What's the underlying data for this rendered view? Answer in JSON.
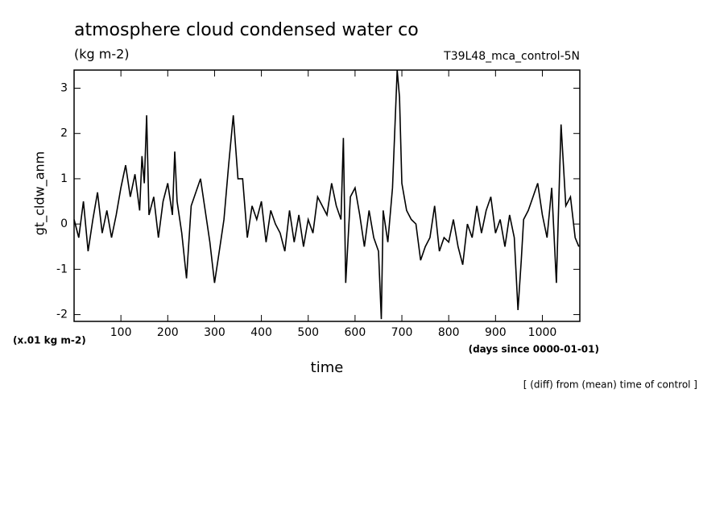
{
  "chart_data": {
    "type": "line",
    "title": "atmosphere cloud condensed water co",
    "subtitle": "(kg m-2)",
    "run_label": "T39L48_mca_control-5N",
    "y_label": "gt_cldw_anm",
    "x_label": "time",
    "y_unit_note": "(x.01 kg m-2)",
    "x_unit_note": "(days since 0000-01-01)",
    "footnote": "[ (diff) from (mean) time of control ]",
    "x": [
      0,
      10,
      20,
      30,
      40,
      50,
      60,
      70,
      80,
      90,
      100,
      110,
      120,
      130,
      140,
      145,
      150,
      155,
      160,
      170,
      180,
      190,
      200,
      210,
      215,
      220,
      230,
      240,
      250,
      260,
      270,
      280,
      290,
      300,
      310,
      320,
      330,
      340,
      350,
      360,
      370,
      380,
      390,
      400,
      410,
      420,
      430,
      440,
      450,
      460,
      470,
      480,
      490,
      500,
      510,
      520,
      530,
      540,
      550,
      560,
      570,
      575,
      580,
      590,
      600,
      610,
      620,
      630,
      640,
      650,
      656,
      660,
      670,
      680,
      690,
      695,
      700,
      710,
      720,
      730,
      740,
      750,
      760,
      770,
      780,
      790,
      800,
      810,
      820,
      830,
      840,
      850,
      860,
      870,
      880,
      890,
      900,
      910,
      920,
      930,
      940,
      948,
      955,
      960,
      970,
      980,
      990,
      1000,
      1010,
      1020,
      1030,
      1040,
      1050,
      1060,
      1070,
      1078
    ],
    "series": [
      {
        "name": "gt_cldw_anm",
        "color": "#000000",
        "values": [
          0.1,
          -0.3,
          0.5,
          -0.6,
          0.1,
          0.7,
          -0.2,
          0.3,
          -0.3,
          0.2,
          0.8,
          1.3,
          0.6,
          1.1,
          0.3,
          1.5,
          0.9,
          2.4,
          0.2,
          0.6,
          -0.3,
          0.5,
          0.9,
          0.2,
          1.6,
          0.5,
          -0.2,
          -1.2,
          0.4,
          0.7,
          1.0,
          0.3,
          -0.4,
          -1.3,
          -0.6,
          0.1,
          1.3,
          2.4,
          1.0,
          1.0,
          -0.3,
          0.4,
          0.1,
          0.5,
          -0.4,
          0.3,
          0.0,
          -0.2,
          -0.6,
          0.3,
          -0.4,
          0.2,
          -0.5,
          0.1,
          -0.2,
          0.6,
          0.4,
          0.2,
          0.9,
          0.4,
          0.1,
          1.9,
          -1.3,
          0.6,
          0.8,
          0.2,
          -0.5,
          0.3,
          -0.3,
          -0.6,
          -2.1,
          0.3,
          -0.4,
          0.8,
          3.4,
          2.8,
          0.9,
          0.3,
          0.1,
          0.0,
          -0.8,
          -0.5,
          -0.3,
          0.4,
          -0.6,
          -0.3,
          -0.4,
          0.1,
          -0.5,
          -0.9,
          0.0,
          -0.3,
          0.4,
          -0.2,
          0.3,
          0.6,
          -0.2,
          0.1,
          -0.5,
          0.2,
          -0.3,
          -1.9,
          -0.8,
          0.1,
          0.3,
          0.6,
          0.9,
          0.2,
          -0.3,
          0.8,
          -1.3,
          2.2,
          0.4,
          0.6,
          -0.3,
          -0.5
        ]
      }
    ],
    "xlim": [
      0,
      1080
    ],
    "ylim": [
      -2.15,
      3.4
    ],
    "xticks": [
      100,
      200,
      300,
      400,
      500,
      600,
      700,
      800,
      900,
      1000
    ],
    "yticks": [
      -2,
      -1,
      0,
      1,
      2,
      3
    ]
  }
}
